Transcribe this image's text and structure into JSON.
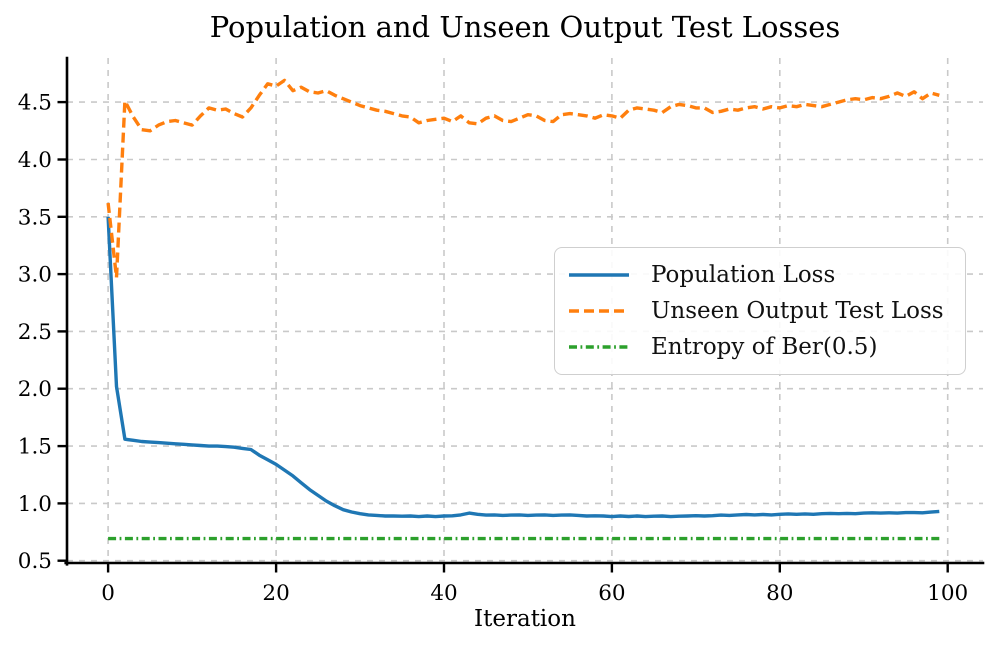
{
  "chart_data": {
    "type": "line",
    "title": "Population and Unseen Output Test Losses",
    "xlabel": "Iteration",
    "ylabel": "",
    "x_mode": "index (iteration 0-99)",
    "xlim": [
      -4.9,
      104.2
    ],
    "ylim": [
      0.48,
      4.885
    ],
    "grid": true,
    "grid_style": "dashed light gray",
    "legend_position": "center right",
    "x_ticks": [
      0,
      20,
      40,
      60,
      80,
      100
    ],
    "x_tick_labels": [
      "0",
      "20",
      "40",
      "60",
      "80",
      "100"
    ],
    "y_ticks": [
      0.5,
      1.0,
      1.5,
      2.0,
      2.5,
      3.0,
      3.5,
      4.0,
      4.5
    ],
    "y_tick_labels": [
      "0.5",
      "1.0",
      "1.5",
      "2.0",
      "2.5",
      "3.0",
      "3.5",
      "4.0",
      "4.5"
    ],
    "series": [
      {
        "name": "Population Loss",
        "color": "#1f77b4",
        "linestyle": "solid",
        "values": [
          3.5,
          2.02,
          1.56,
          1.55,
          1.54,
          1.535,
          1.53,
          1.525,
          1.52,
          1.515,
          1.51,
          1.505,
          1.5,
          1.5,
          1.495,
          1.49,
          1.48,
          1.47,
          1.42,
          1.38,
          1.34,
          1.29,
          1.24,
          1.18,
          1.12,
          1.07,
          1.02,
          0.98,
          0.945,
          0.925,
          0.91,
          0.9,
          0.895,
          0.89,
          0.89,
          0.888,
          0.89,
          0.885,
          0.89,
          0.885,
          0.89,
          0.892,
          0.9,
          0.915,
          0.905,
          0.898,
          0.9,
          0.895,
          0.898,
          0.9,
          0.895,
          0.898,
          0.9,
          0.895,
          0.898,
          0.9,
          0.895,
          0.89,
          0.892,
          0.89,
          0.885,
          0.89,
          0.886,
          0.89,
          0.885,
          0.888,
          0.89,
          0.885,
          0.888,
          0.89,
          0.893,
          0.89,
          0.893,
          0.898,
          0.895,
          0.9,
          0.903,
          0.9,
          0.903,
          0.9,
          0.905,
          0.908,
          0.905,
          0.908,
          0.905,
          0.91,
          0.913,
          0.91,
          0.913,
          0.91,
          0.915,
          0.918,
          0.915,
          0.918,
          0.915,
          0.92,
          0.92,
          0.918,
          0.924,
          0.93
        ]
      },
      {
        "name": "Unseen Output Test Loss",
        "color": "#ff7f0e",
        "linestyle": "dashed",
        "values": [
          3.62,
          2.97,
          4.51,
          4.37,
          4.26,
          4.25,
          4.3,
          4.33,
          4.34,
          4.32,
          4.3,
          4.38,
          4.45,
          4.43,
          4.44,
          4.4,
          4.37,
          4.45,
          4.56,
          4.66,
          4.64,
          4.69,
          4.6,
          4.63,
          4.59,
          4.58,
          4.6,
          4.56,
          4.53,
          4.5,
          4.47,
          4.45,
          4.43,
          4.42,
          4.4,
          4.38,
          4.37,
          4.32,
          4.34,
          4.35,
          4.36,
          4.33,
          4.38,
          4.32,
          4.31,
          4.36,
          4.38,
          4.34,
          4.33,
          4.36,
          4.39,
          4.38,
          4.34,
          4.33,
          4.39,
          4.4,
          4.39,
          4.38,
          4.36,
          4.39,
          4.38,
          4.36,
          4.43,
          4.45,
          4.44,
          4.43,
          4.41,
          4.46,
          4.48,
          4.47,
          4.45,
          4.45,
          4.41,
          4.42,
          4.44,
          4.43,
          4.45,
          4.46,
          4.44,
          4.46,
          4.45,
          4.47,
          4.46,
          4.48,
          4.47,
          4.46,
          4.48,
          4.5,
          4.52,
          4.53,
          4.52,
          4.54,
          4.53,
          4.55,
          4.58,
          4.55,
          4.59,
          4.53,
          4.58,
          4.56
        ]
      },
      {
        "name": "Entropy of Ber(0.5)",
        "color": "#2ca02c",
        "linestyle": "dashdot",
        "constant": 0.693,
        "count": 100
      }
    ]
  }
}
